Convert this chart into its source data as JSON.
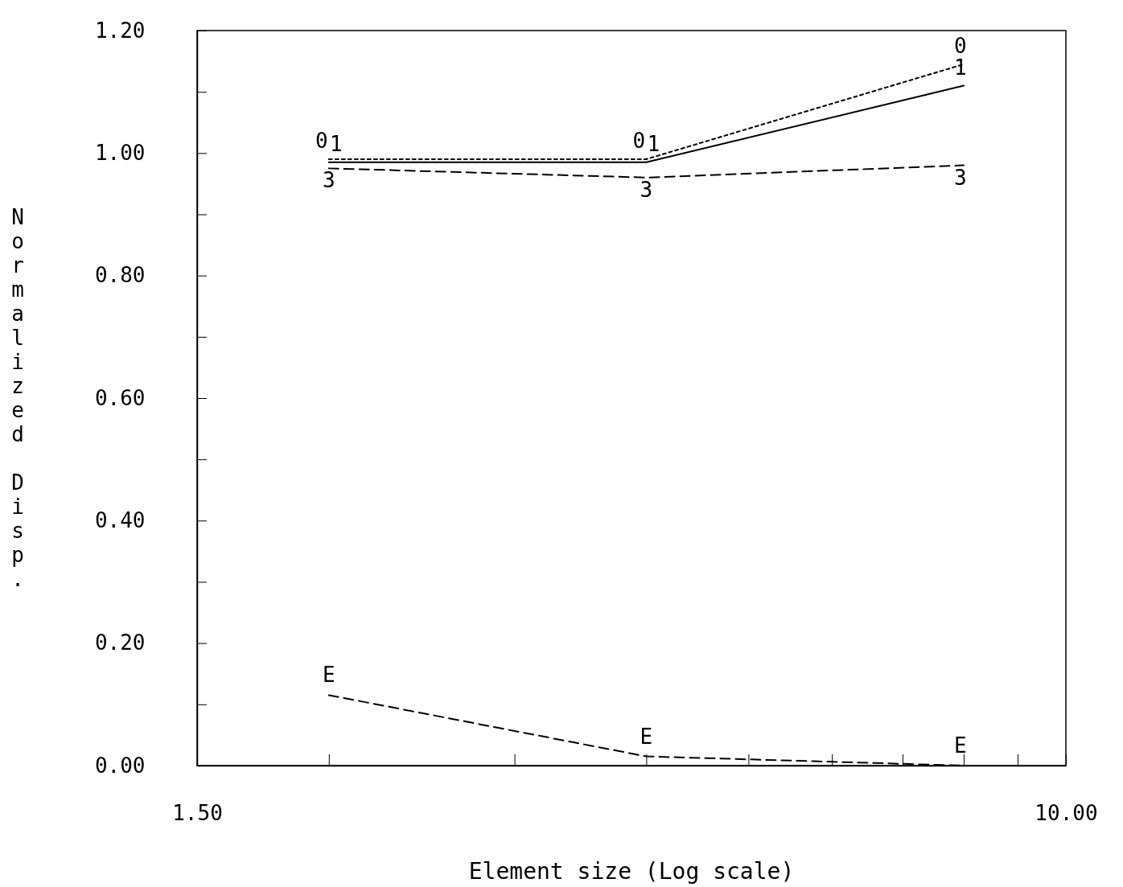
{
  "chart_data": {
    "type": "line",
    "xlabel": "Element size (Log scale)",
    "ylabel": "Normalized Disp.",
    "log": "x",
    "x": [
      2,
      4,
      8
    ],
    "series": [
      {
        "name": "0",
        "color": "#000000",
        "line_style": "dotted",
        "values": [
          0.99,
          0.99,
          1.145
        ]
      },
      {
        "name": "1",
        "color": "#000000",
        "line_style": "solid",
        "values": [
          0.985,
          0.985,
          1.11
        ]
      },
      {
        "name": "3",
        "color": "#000000",
        "line_style": "dashed",
        "values": [
          0.975,
          0.96,
          0.98
        ]
      },
      {
        "name": "E",
        "color": "#000000",
        "line_style": "dashed",
        "values": [
          0.115,
          0.015,
          0.0
        ]
      }
    ],
    "xlim": [
      1.5,
      10
    ],
    "xticks": [
      {
        "value": 1.5,
        "label": "1.50"
      },
      {
        "value": 2,
        "label": null
      },
      {
        "value": 3,
        "label": null
      },
      {
        "value": 4,
        "label": null
      },
      {
        "value": 5,
        "label": null
      },
      {
        "value": 6,
        "label": null
      },
      {
        "value": 7,
        "label": null
      },
      {
        "value": 8,
        "label": null
      },
      {
        "value": 9,
        "label": null
      },
      {
        "value": 10,
        "label": "10.00"
      }
    ],
    "ylim": [
      0,
      1.2
    ],
    "yticks": [
      {
        "value": 0,
        "label": "0.00"
      },
      {
        "value": 0.1,
        "label": null
      },
      {
        "value": 0.2,
        "label": "0.20"
      },
      {
        "value": 0.3,
        "label": null
      },
      {
        "value": 0.4,
        "label": "0.40"
      },
      {
        "value": 0.5,
        "label": null
      },
      {
        "value": 0.6,
        "label": "0.60"
      },
      {
        "value": 0.7,
        "label": null
      },
      {
        "value": 0.8,
        "label": "0.80"
      },
      {
        "value": 0.9,
        "label": null
      },
      {
        "value": 1.0,
        "label": "1.00"
      },
      {
        "value": 1.1,
        "label": null
      },
      {
        "value": 1.2,
        "label": "1.20"
      }
    ],
    "grid": false,
    "legend": false,
    "marker": "none"
  }
}
